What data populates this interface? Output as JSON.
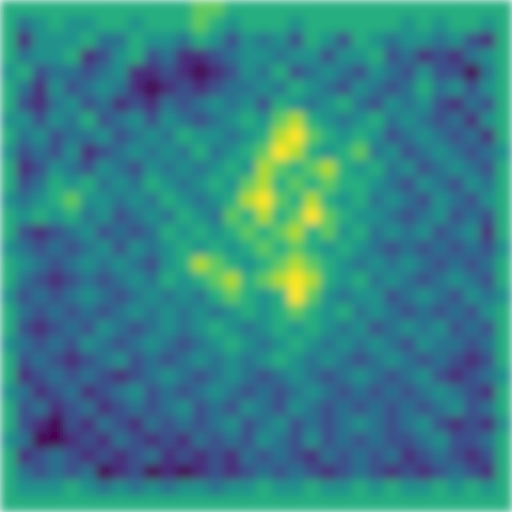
{
  "chart_data": {
    "type": "heatmap",
    "color": "viridis",
    "tick_labels": false,
    "values": [
      [
        0.6,
        0.6,
        0.6,
        0.6,
        0.6,
        0.6,
        0.6,
        0.6,
        0.6,
        0.6,
        0.6,
        0.6,
        0.7,
        0.7,
        0.6,
        0.6,
        0.6,
        0.6,
        0.6,
        0.6,
        0.6,
        0.6,
        0.6,
        0.6,
        0.6,
        0.6,
        0.6,
        0.6,
        0.6,
        0.6,
        0.6,
        0.6
      ],
      [
        0.6,
        0.4,
        0.5,
        0.6,
        0.5,
        0.5,
        0.6,
        0.6,
        0.5,
        0.6,
        0.6,
        0.6,
        0.7,
        0.6,
        0.5,
        0.6,
        0.6,
        0.6,
        0.5,
        0.6,
        0.6,
        0.6,
        0.6,
        0.6,
        0.6,
        0.5,
        0.6,
        0.5,
        0.6,
        0.6,
        0.5,
        0.6
      ],
      [
        0.6,
        0.2,
        0.5,
        0.5,
        0.5,
        0.6,
        0.4,
        0.4,
        0.6,
        0.5,
        0.5,
        0.4,
        0.6,
        0.5,
        0.3,
        0.5,
        0.4,
        0.5,
        0.3,
        0.6,
        0.5,
        0.3,
        0.6,
        0.5,
        0.4,
        0.5,
        0.5,
        0.4,
        0.5,
        0.3,
        0.2,
        0.6
      ],
      [
        0.6,
        0.4,
        0.5,
        0.5,
        0.6,
        0.2,
        0.3,
        0.5,
        0.6,
        0.3,
        0.4,
        0.2,
        0.2,
        0.3,
        0.4,
        0.5,
        0.5,
        0.4,
        0.5,
        0.5,
        0.3,
        0.5,
        0.5,
        0.6,
        0.3,
        0.4,
        0.2,
        0.3,
        0.2,
        0.4,
        0.5,
        0.6
      ],
      [
        0.5,
        0.6,
        0.3,
        0.4,
        0.4,
        0.3,
        0.4,
        0.5,
        0.2,
        0.2,
        0.3,
        0.2,
        0.1,
        0.2,
        0.3,
        0.5,
        0.4,
        0.6,
        0.3,
        0.4,
        0.5,
        0.4,
        0.3,
        0.5,
        0.4,
        0.3,
        0.5,
        0.3,
        0.3,
        0.1,
        0.4,
        0.6
      ],
      [
        0.6,
        0.4,
        0.2,
        0.5,
        0.3,
        0.4,
        0.5,
        0.4,
        0.2,
        0.1,
        0.2,
        0.3,
        0.2,
        0.3,
        0.4,
        0.4,
        0.5,
        0.4,
        0.6,
        0.5,
        0.4,
        0.3,
        0.5,
        0.4,
        0.3,
        0.4,
        0.6,
        0.4,
        0.5,
        0.3,
        0.5,
        0.6
      ],
      [
        0.6,
        0.3,
        0.2,
        0.4,
        0.5,
        0.3,
        0.4,
        0.2,
        0.3,
        0.2,
        0.4,
        0.3,
        0.4,
        0.5,
        0.4,
        0.5,
        0.3,
        0.6,
        0.5,
        0.4,
        0.5,
        0.6,
        0.4,
        0.3,
        0.5,
        0.4,
        0.5,
        0.3,
        0.2,
        0.4,
        0.3,
        0.6
      ],
      [
        0.5,
        0.5,
        0.3,
        0.5,
        0.4,
        0.6,
        0.3,
        0.4,
        0.5,
        0.3,
        0.5,
        0.4,
        0.3,
        0.4,
        0.5,
        0.6,
        0.5,
        0.7,
        0.8,
        0.6,
        0.5,
        0.4,
        0.5,
        0.6,
        0.4,
        0.5,
        0.4,
        0.3,
        0.4,
        0.2,
        0.5,
        0.6
      ],
      [
        0.6,
        0.4,
        0.5,
        0.3,
        0.4,
        0.4,
        0.5,
        0.3,
        0.4,
        0.5,
        0.4,
        0.6,
        0.5,
        0.5,
        0.4,
        0.5,
        0.6,
        0.8,
        0.9,
        0.7,
        0.6,
        0.5,
        0.6,
        0.5,
        0.3,
        0.4,
        0.5,
        0.4,
        0.3,
        0.4,
        0.2,
        0.6
      ],
      [
        0.5,
        0.3,
        0.4,
        0.3,
        0.5,
        0.2,
        0.3,
        0.4,
        0.5,
        0.4,
        0.5,
        0.4,
        0.6,
        0.4,
        0.5,
        0.6,
        0.7,
        0.9,
        0.8,
        0.6,
        0.5,
        0.6,
        0.7,
        0.4,
        0.5,
        0.3,
        0.4,
        0.5,
        0.4,
        0.3,
        0.4,
        0.5
      ],
      [
        0.6,
        0.2,
        0.3,
        0.5,
        0.4,
        0.3,
        0.5,
        0.4,
        0.3,
        0.5,
        0.4,
        0.5,
        0.4,
        0.5,
        0.6,
        0.5,
        0.8,
        0.7,
        0.6,
        0.7,
        0.8,
        0.6,
        0.5,
        0.6,
        0.4,
        0.5,
        0.3,
        0.4,
        0.5,
        0.4,
        0.3,
        0.6
      ],
      [
        0.6,
        0.3,
        0.4,
        0.6,
        0.5,
        0.6,
        0.4,
        0.5,
        0.4,
        0.6,
        0.5,
        0.4,
        0.5,
        0.6,
        0.5,
        0.7,
        0.8,
        0.6,
        0.7,
        0.6,
        0.7,
        0.6,
        0.6,
        0.5,
        0.4,
        0.3,
        0.5,
        0.4,
        0.3,
        0.5,
        0.4,
        0.6
      ],
      [
        0.5,
        0.4,
        0.5,
        0.6,
        0.7,
        0.5,
        0.5,
        0.4,
        0.5,
        0.4,
        0.6,
        0.5,
        0.4,
        0.5,
        0.6,
        0.8,
        0.9,
        0.7,
        0.6,
        0.8,
        0.6,
        0.5,
        0.6,
        0.4,
        0.5,
        0.4,
        0.3,
        0.5,
        0.4,
        0.3,
        0.5,
        0.6
      ],
      [
        0.6,
        0.5,
        0.6,
        0.5,
        0.6,
        0.4,
        0.5,
        0.3,
        0.4,
        0.5,
        0.4,
        0.6,
        0.5,
        0.4,
        0.7,
        0.6,
        0.8,
        0.6,
        0.7,
        0.9,
        0.7,
        0.6,
        0.5,
        0.5,
        0.4,
        0.3,
        0.4,
        0.5,
        0.3,
        0.4,
        0.3,
        0.6
      ],
      [
        0.6,
        0.3,
        0.2,
        0.3,
        0.4,
        0.5,
        0.3,
        0.4,
        0.3,
        0.4,
        0.6,
        0.5,
        0.6,
        0.5,
        0.6,
        0.7,
        0.6,
        0.7,
        0.8,
        0.6,
        0.7,
        0.5,
        0.6,
        0.4,
        0.5,
        0.4,
        0.5,
        0.3,
        0.4,
        0.5,
        0.2,
        0.6
      ],
      [
        0.5,
        0.4,
        0.3,
        0.4,
        0.3,
        0.4,
        0.5,
        0.3,
        0.5,
        0.4,
        0.5,
        0.6,
        0.5,
        0.6,
        0.5,
        0.6,
        0.7,
        0.6,
        0.7,
        0.6,
        0.5,
        0.6,
        0.5,
        0.4,
        0.3,
        0.4,
        0.3,
        0.4,
        0.3,
        0.4,
        0.3,
        0.5
      ],
      [
        0.6,
        0.5,
        0.4,
        0.3,
        0.4,
        0.5,
        0.4,
        0.5,
        0.4,
        0.3,
        0.5,
        0.6,
        0.8,
        0.7,
        0.6,
        0.5,
        0.6,
        0.7,
        0.8,
        0.7,
        0.6,
        0.5,
        0.4,
        0.5,
        0.4,
        0.5,
        0.4,
        0.3,
        0.4,
        0.3,
        0.4,
        0.6
      ],
      [
        0.6,
        0.4,
        0.3,
        0.2,
        0.3,
        0.4,
        0.3,
        0.4,
        0.5,
        0.4,
        0.6,
        0.5,
        0.6,
        0.7,
        0.8,
        0.6,
        0.7,
        0.8,
        0.9,
        0.8,
        0.6,
        0.5,
        0.6,
        0.4,
        0.5,
        0.4,
        0.3,
        0.4,
        0.5,
        0.4,
        0.3,
        0.6
      ],
      [
        0.5,
        0.3,
        0.4,
        0.3,
        0.4,
        0.5,
        0.4,
        0.3,
        0.4,
        0.5,
        0.4,
        0.5,
        0.4,
        0.6,
        0.7,
        0.6,
        0.5,
        0.6,
        0.9,
        0.7,
        0.5,
        0.4,
        0.5,
        0.5,
        0.3,
        0.4,
        0.5,
        0.4,
        0.3,
        0.5,
        0.4,
        0.5
      ],
      [
        0.6,
        0.4,
        0.3,
        0.4,
        0.3,
        0.4,
        0.3,
        0.4,
        0.5,
        0.4,
        0.5,
        0.4,
        0.5,
        0.4,
        0.5,
        0.6,
        0.5,
        0.6,
        0.7,
        0.6,
        0.5,
        0.6,
        0.4,
        0.5,
        0.4,
        0.3,
        0.4,
        0.3,
        0.4,
        0.3,
        0.5,
        0.6
      ],
      [
        0.6,
        0.3,
        0.2,
        0.3,
        0.4,
        0.3,
        0.5,
        0.4,
        0.3,
        0.4,
        0.5,
        0.4,
        0.5,
        0.6,
        0.5,
        0.4,
        0.5,
        0.6,
        0.5,
        0.6,
        0.5,
        0.4,
        0.5,
        0.3,
        0.4,
        0.5,
        0.4,
        0.5,
        0.3,
        0.4,
        0.3,
        0.6
      ],
      [
        0.5,
        0.4,
        0.3,
        0.4,
        0.3,
        0.5,
        0.4,
        0.3,
        0.4,
        0.5,
        0.4,
        0.3,
        0.4,
        0.5,
        0.6,
        0.5,
        0.4,
        0.5,
        0.6,
        0.5,
        0.4,
        0.5,
        0.4,
        0.5,
        0.4,
        0.3,
        0.5,
        0.4,
        0.4,
        0.3,
        0.4,
        0.6
      ],
      [
        0.6,
        0.3,
        0.4,
        0.3,
        0.2,
        0.3,
        0.4,
        0.5,
        0.3,
        0.4,
        0.3,
        0.4,
        0.5,
        0.4,
        0.5,
        0.4,
        0.5,
        0.6,
        0.5,
        0.4,
        0.5,
        0.4,
        0.3,
        0.4,
        0.5,
        0.4,
        0.3,
        0.4,
        0.3,
        0.2,
        0.3,
        0.6
      ],
      [
        0.6,
        0.2,
        0.3,
        0.4,
        0.3,
        0.4,
        0.3,
        0.2,
        0.3,
        0.4,
        0.5,
        0.4,
        0.3,
        0.4,
        0.5,
        0.4,
        0.3,
        0.4,
        0.5,
        0.4,
        0.3,
        0.4,
        0.5,
        0.4,
        0.3,
        0.4,
        0.5,
        0.3,
        0.2,
        0.3,
        0.4,
        0.5
      ],
      [
        0.5,
        0.4,
        0.2,
        0.3,
        0.4,
        0.2,
        0.3,
        0.4,
        0.5,
        0.3,
        0.4,
        0.3,
        0.4,
        0.5,
        0.4,
        0.3,
        0.4,
        0.3,
        0.4,
        0.5,
        0.4,
        0.3,
        0.4,
        0.3,
        0.4,
        0.3,
        0.4,
        0.5,
        0.4,
        0.3,
        0.2,
        0.6
      ],
      [
        0.6,
        0.3,
        0.4,
        0.2,
        0.3,
        0.4,
        0.2,
        0.3,
        0.4,
        0.3,
        0.4,
        0.5,
        0.3,
        0.4,
        0.3,
        0.5,
        0.4,
        0.3,
        0.5,
        0.4,
        0.3,
        0.4,
        0.3,
        0.4,
        0.3,
        0.4,
        0.3,
        0.4,
        0.5,
        0.3,
        0.4,
        0.6
      ],
      [
        0.6,
        0.3,
        0.2,
        0.1,
        0.3,
        0.2,
        0.4,
        0.3,
        0.2,
        0.4,
        0.3,
        0.4,
        0.3,
        0.4,
        0.5,
        0.3,
        0.4,
        0.5,
        0.3,
        0.4,
        0.3,
        0.4,
        0.5,
        0.4,
        0.3,
        0.4,
        0.5,
        0.3,
        0.2,
        0.3,
        0.2,
        0.5
      ],
      [
        0.5,
        0.4,
        0.1,
        0.1,
        0.2,
        0.3,
        0.2,
        0.4,
        0.3,
        0.2,
        0.3,
        0.2,
        0.4,
        0.3,
        0.4,
        0.3,
        0.5,
        0.4,
        0.3,
        0.5,
        0.3,
        0.4,
        0.3,
        0.4,
        0.3,
        0.3,
        0.4,
        0.5,
        0.3,
        0.3,
        0.4,
        0.6
      ],
      [
        0.6,
        0.2,
        0.3,
        0.4,
        0.3,
        0.2,
        0.3,
        0.2,
        0.3,
        0.4,
        0.2,
        0.3,
        0.2,
        0.3,
        0.2,
        0.4,
        0.3,
        0.4,
        0.3,
        0.2,
        0.4,
        0.3,
        0.4,
        0.3,
        0.4,
        0.2,
        0.3,
        0.4,
        0.3,
        0.2,
        0.3,
        0.6
      ],
      [
        0.6,
        0.4,
        0.3,
        0.4,
        0.3,
        0.4,
        0.1,
        0.2,
        0.3,
        0.1,
        0.2,
        0.1,
        0.2,
        0.3,
        0.2,
        0.3,
        0.4,
        0.3,
        0.4,
        0.3,
        0.2,
        0.3,
        0.4,
        0.3,
        0.2,
        0.3,
        0.2,
        0.3,
        0.4,
        0.3,
        0.2,
        0.6
      ],
      [
        0.6,
        0.5,
        0.5,
        0.5,
        0.6,
        0.5,
        0.4,
        0.5,
        0.4,
        0.5,
        0.4,
        0.5,
        0.5,
        0.4,
        0.5,
        0.5,
        0.6,
        0.5,
        0.5,
        0.6,
        0.5,
        0.5,
        0.6,
        0.5,
        0.6,
        0.5,
        0.5,
        0.6,
        0.5,
        0.6,
        0.5,
        0.6
      ],
      [
        0.6,
        0.6,
        0.6,
        0.6,
        0.6,
        0.6,
        0.6,
        0.6,
        0.6,
        0.6,
        0.6,
        0.6,
        0.6,
        0.6,
        0.6,
        0.6,
        0.6,
        0.6,
        0.6,
        0.6,
        0.6,
        0.6,
        0.6,
        0.6,
        0.6,
        0.6,
        0.6,
        0.6,
        0.6,
        0.6,
        0.6,
        0.6
      ]
    ]
  }
}
